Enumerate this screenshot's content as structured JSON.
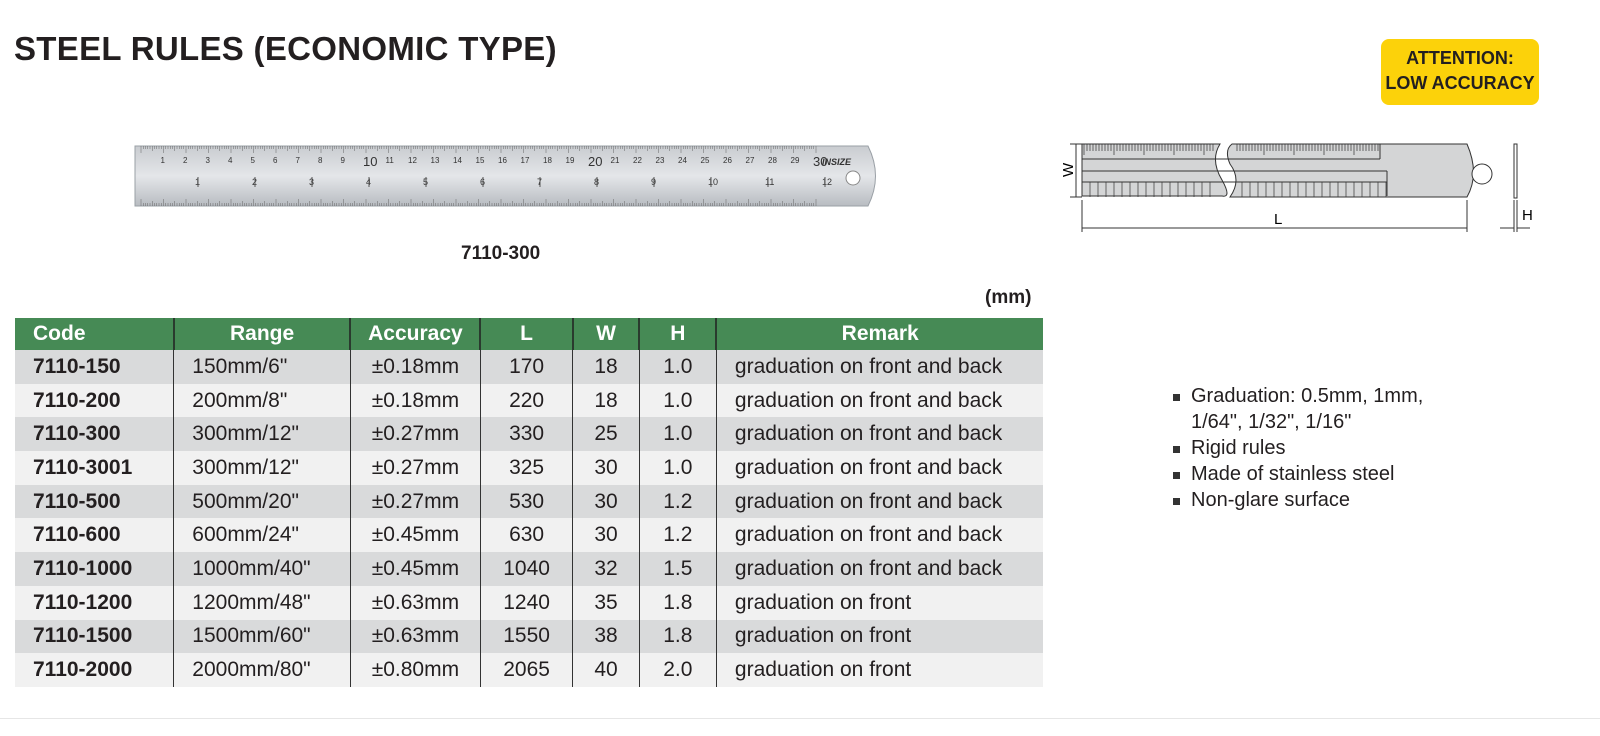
{
  "title": "STEEL RULES (ECONOMIC TYPE)",
  "badge": {
    "line1": "ATTENTION:",
    "line2": "LOW ACCURACY",
    "color": "#fcd20a"
  },
  "photo": {
    "caption": "7110-300",
    "brand_logo": "INSIZE"
  },
  "drawing": {
    "w_label": "W",
    "l_label": "L",
    "h_label": "H"
  },
  "unit": "(mm)",
  "table": {
    "header_color": "#468a55",
    "headers": [
      "Code",
      "Range",
      "Accuracy",
      "L",
      "W",
      "H",
      "Remark"
    ],
    "rows": [
      [
        "7110-150",
        "150mm/6\"",
        "±0.18mm",
        "170",
        "18",
        "1.0",
        "graduation on front and back"
      ],
      [
        "7110-200",
        "200mm/8\"",
        "±0.18mm",
        "220",
        "18",
        "1.0",
        "graduation on front and back"
      ],
      [
        "7110-300",
        "300mm/12\"",
        "±0.27mm",
        "330",
        "25",
        "1.0",
        "graduation on front and back"
      ],
      [
        "7110-3001",
        "300mm/12\"",
        "±0.27mm",
        "325",
        "30",
        "1.0",
        "graduation on front and back"
      ],
      [
        "7110-500",
        "500mm/20\"",
        "±0.27mm",
        "530",
        "30",
        "1.2",
        "graduation on front and back"
      ],
      [
        "7110-600",
        "600mm/24\"",
        "±0.45mm",
        "630",
        "30",
        "1.2",
        "graduation on front and back"
      ],
      [
        "7110-1000",
        "1000mm/40\"",
        "±0.45mm",
        "1040",
        "32",
        "1.5",
        "graduation on front and back"
      ],
      [
        "7110-1200",
        "1200mm/48\"",
        "±0.63mm",
        "1240",
        "35",
        "1.8",
        "graduation on front"
      ],
      [
        "7110-1500",
        "1500mm/60\"",
        "±0.63mm",
        "1550",
        "38",
        "1.8",
        "graduation on front"
      ],
      [
        "7110-2000",
        "2000mm/80\"",
        "±0.80mm",
        "2065",
        "40",
        "2.0",
        "graduation on front"
      ]
    ]
  },
  "features": [
    "Graduation: 0.5mm, 1mm,",
    "1/64\", 1/32\", 1/16\"",
    "Rigid rules",
    "Made of stainless steel",
    "Non-glare surface"
  ]
}
